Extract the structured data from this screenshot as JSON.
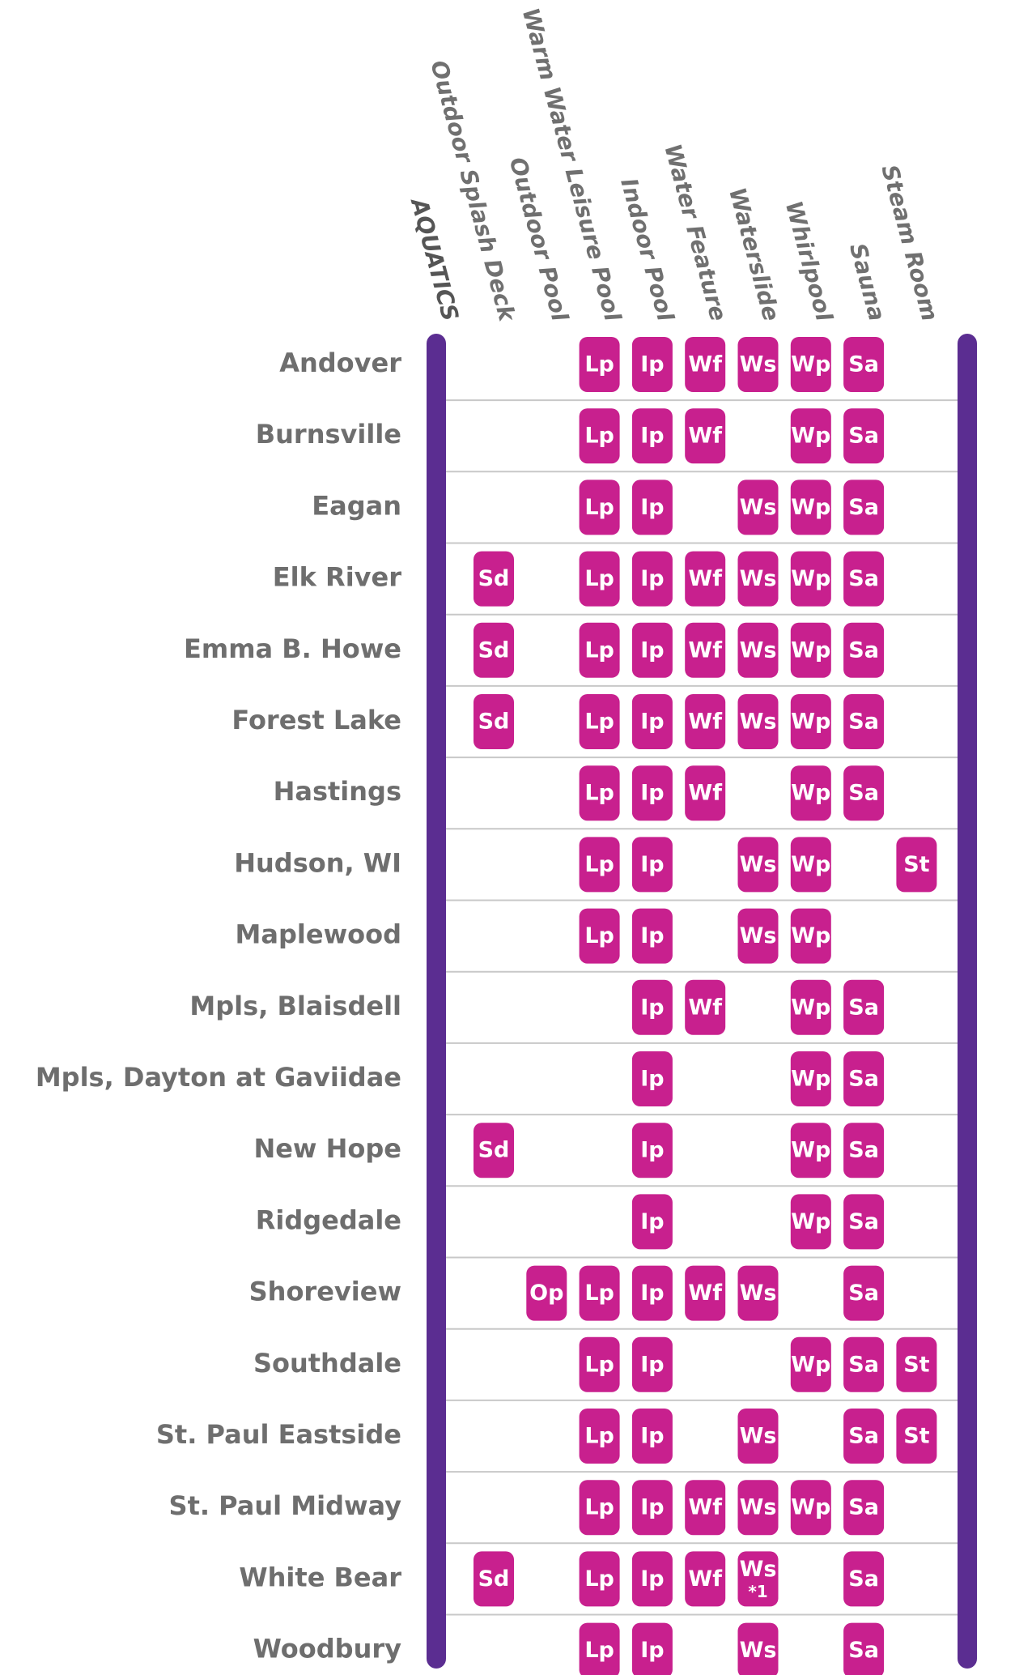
{
  "header": {
    "title": "AQUATICS",
    "columns": [
      "Outdoor Splash Deck",
      "Outdoor Pool",
      "Warm Water Leisure Pool",
      "Indoor Pool",
      "Water Feature",
      "Waterslide",
      "Whirlpool",
      "Sauna",
      "Steam Room"
    ]
  },
  "rows": [
    {
      "name": "Andover",
      "cells": [
        null,
        null,
        "Lp",
        "Ip",
        "Wf",
        "Ws",
        "Wp",
        "Sa",
        null
      ]
    },
    {
      "name": "Burnsville",
      "cells": [
        null,
        null,
        "Lp",
        "Ip",
        "Wf",
        null,
        "Wp",
        "Sa",
        null
      ]
    },
    {
      "name": "Eagan",
      "cells": [
        null,
        null,
        "Lp",
        "Ip",
        null,
        "Ws",
        "Wp",
        "Sa",
        null
      ]
    },
    {
      "name": "Elk River",
      "cells": [
        "Sd",
        null,
        "Lp",
        "Ip",
        "Wf",
        "Ws",
        "Wp",
        "Sa",
        null
      ]
    },
    {
      "name": "Emma B. Howe",
      "cells": [
        "Sd",
        null,
        "Lp",
        "Ip",
        "Wf",
        "Ws",
        "Wp",
        "Sa",
        null
      ]
    },
    {
      "name": "Forest Lake",
      "cells": [
        "Sd",
        null,
        "Lp",
        "Ip",
        "Wf",
        "Ws",
        "Wp",
        "Sa",
        null
      ]
    },
    {
      "name": "Hastings",
      "cells": [
        null,
        null,
        "Lp",
        "Ip",
        "Wf",
        null,
        "Wp",
        "Sa",
        null
      ]
    },
    {
      "name": "Hudson, WI",
      "cells": [
        null,
        null,
        "Lp",
        "Ip",
        null,
        "Ws",
        "Wp",
        null,
        "St"
      ]
    },
    {
      "name": "Maplewood",
      "cells": [
        null,
        null,
        "Lp",
        "Ip",
        null,
        "Ws",
        "Wp",
        null,
        null
      ]
    },
    {
      "name": "Mpls, Blaisdell",
      "cells": [
        null,
        null,
        null,
        "Ip",
        "Wf",
        null,
        "Wp",
        "Sa",
        null
      ]
    },
    {
      "name": "Mpls, Dayton at Gaviidae",
      "cells": [
        null,
        null,
        null,
        "Ip",
        null,
        null,
        "Wp",
        "Sa",
        null
      ]
    },
    {
      "name": "New Hope",
      "cells": [
        "Sd",
        null,
        null,
        "Ip",
        null,
        null,
        "Wp",
        "Sa",
        null
      ]
    },
    {
      "name": "Ridgedale",
      "cells": [
        null,
        null,
        null,
        "Ip",
        null,
        null,
        "Wp",
        "Sa",
        null
      ]
    },
    {
      "name": "Shoreview",
      "cells": [
        null,
        "Op",
        "Lp",
        "Ip",
        "Wf",
        "Ws",
        null,
        "Sa",
        null
      ]
    },
    {
      "name": "Southdale",
      "cells": [
        null,
        null,
        "Lp",
        "Ip",
        null,
        null,
        "Wp",
        "Sa",
        "St"
      ]
    },
    {
      "name": "St. Paul Eastside",
      "cells": [
        null,
        null,
        "Lp",
        "Ip",
        null,
        "Ws",
        null,
        "Sa",
        "St"
      ]
    },
    {
      "name": "St. Paul Midway",
      "cells": [
        null,
        null,
        "Lp",
        "Ip",
        "Wf",
        "Ws",
        "Wp",
        "Sa",
        null
      ]
    },
    {
      "name": "White Bear",
      "cells": [
        "Sd",
        null,
        "Lp",
        "Ip",
        "Wf",
        {
          "code": "Ws",
          "note": "*1"
        },
        null,
        "Sa",
        null
      ]
    },
    {
      "name": "Woodbury",
      "cells": [
        null,
        null,
        "Lp",
        "Ip",
        null,
        "Ws",
        null,
        "Sa",
        null
      ]
    }
  ]
}
